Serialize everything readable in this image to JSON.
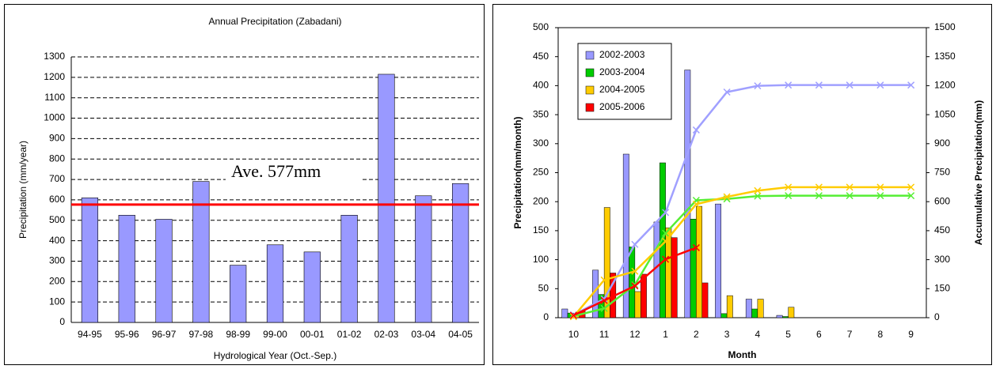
{
  "chart_data": [
    {
      "type": "bar",
      "title": "Annual Precipitation (Zabadani)",
      "x_label": "Hydrological Year (Oct.-Sep.)",
      "y_label": "Precipitation (mm/year)",
      "categories": [
        "94-95",
        "95-96",
        "96-97",
        "97-98",
        "98-99",
        "99-00",
        "00-01",
        "01-02",
        "02-03",
        "03-04",
        "04-05"
      ],
      "values": [
        610,
        525,
        505,
        690,
        280,
        380,
        345,
        525,
        1215,
        620,
        680
      ],
      "color": "#9999ff",
      "average": {
        "value": 577,
        "label": "Ave. 577mm"
      },
      "average_color": "#ff0000",
      "ylim": [
        0,
        1300
      ],
      "yticks": [
        0,
        100,
        200,
        300,
        400,
        500,
        600,
        700,
        800,
        900,
        1000,
        1100,
        1200,
        1300
      ],
      "grid": true
    },
    {
      "type": "combo",
      "x_label": "Month",
      "y_label": "Precipitation(mm/month)",
      "y2_label": "Accumulative Precipitation(mm)",
      "categories": [
        "10",
        "11",
        "12",
        "1",
        "2",
        "3",
        "4",
        "5",
        "6",
        "7",
        "8",
        "9"
      ],
      "series": [
        {
          "name": "2002-2003",
          "color": "#9999ff",
          "values": [
            15,
            82,
            282,
            165,
            427,
            196,
            32,
            4,
            0,
            0,
            0,
            0
          ]
        },
        {
          "name": "2003-2004",
          "color": "#00cc00",
          "values": [
            8,
            40,
            122,
            267,
            170,
            7,
            15,
            2,
            0,
            0,
            0,
            0
          ]
        },
        {
          "name": "2004-2005",
          "color": "#ffcc00",
          "values": [
            5,
            190,
            45,
            155,
            192,
            38,
            32,
            18,
            0,
            0,
            0,
            0
          ]
        },
        {
          "name": "2005-2006",
          "color": "#ff0000",
          "values": [
            12,
            77,
            75,
            138,
            60,
            null,
            null,
            null,
            null,
            null,
            null,
            null
          ]
        }
      ],
      "cumulative": [
        {
          "color": "#a0a0ff",
          "axis": "y2",
          "values": [
            15,
            97,
            379,
            544,
            971,
            1167,
            1199,
            1203,
            1203,
            1203,
            1203,
            1203
          ]
        },
        {
          "color": "#55ee33",
          "axis": "y2",
          "values": [
            8,
            48,
            170,
            437,
            607,
            614,
            629,
            631,
            631,
            631,
            631,
            631
          ]
        },
        {
          "color": "#ffcc00",
          "axis": "y2",
          "values": [
            5,
            195,
            240,
            395,
            587,
            625,
            657,
            675,
            675,
            675,
            675,
            675
          ]
        },
        {
          "color": "#ff0000",
          "axis": "y2",
          "values": [
            12,
            89,
            164,
            302,
            362,
            null,
            null,
            null,
            null,
            null,
            null,
            null
          ]
        }
      ],
      "legend": "upper left",
      "ylim": [
        0,
        500
      ],
      "yticks": [
        0,
        50,
        100,
        150,
        200,
        250,
        300,
        350,
        400,
        450,
        500
      ],
      "y2lim": [
        0,
        1500
      ],
      "y2ticks": [
        0,
        150,
        300,
        450,
        600,
        750,
        900,
        1050,
        1200,
        1350,
        1500
      ]
    }
  ]
}
